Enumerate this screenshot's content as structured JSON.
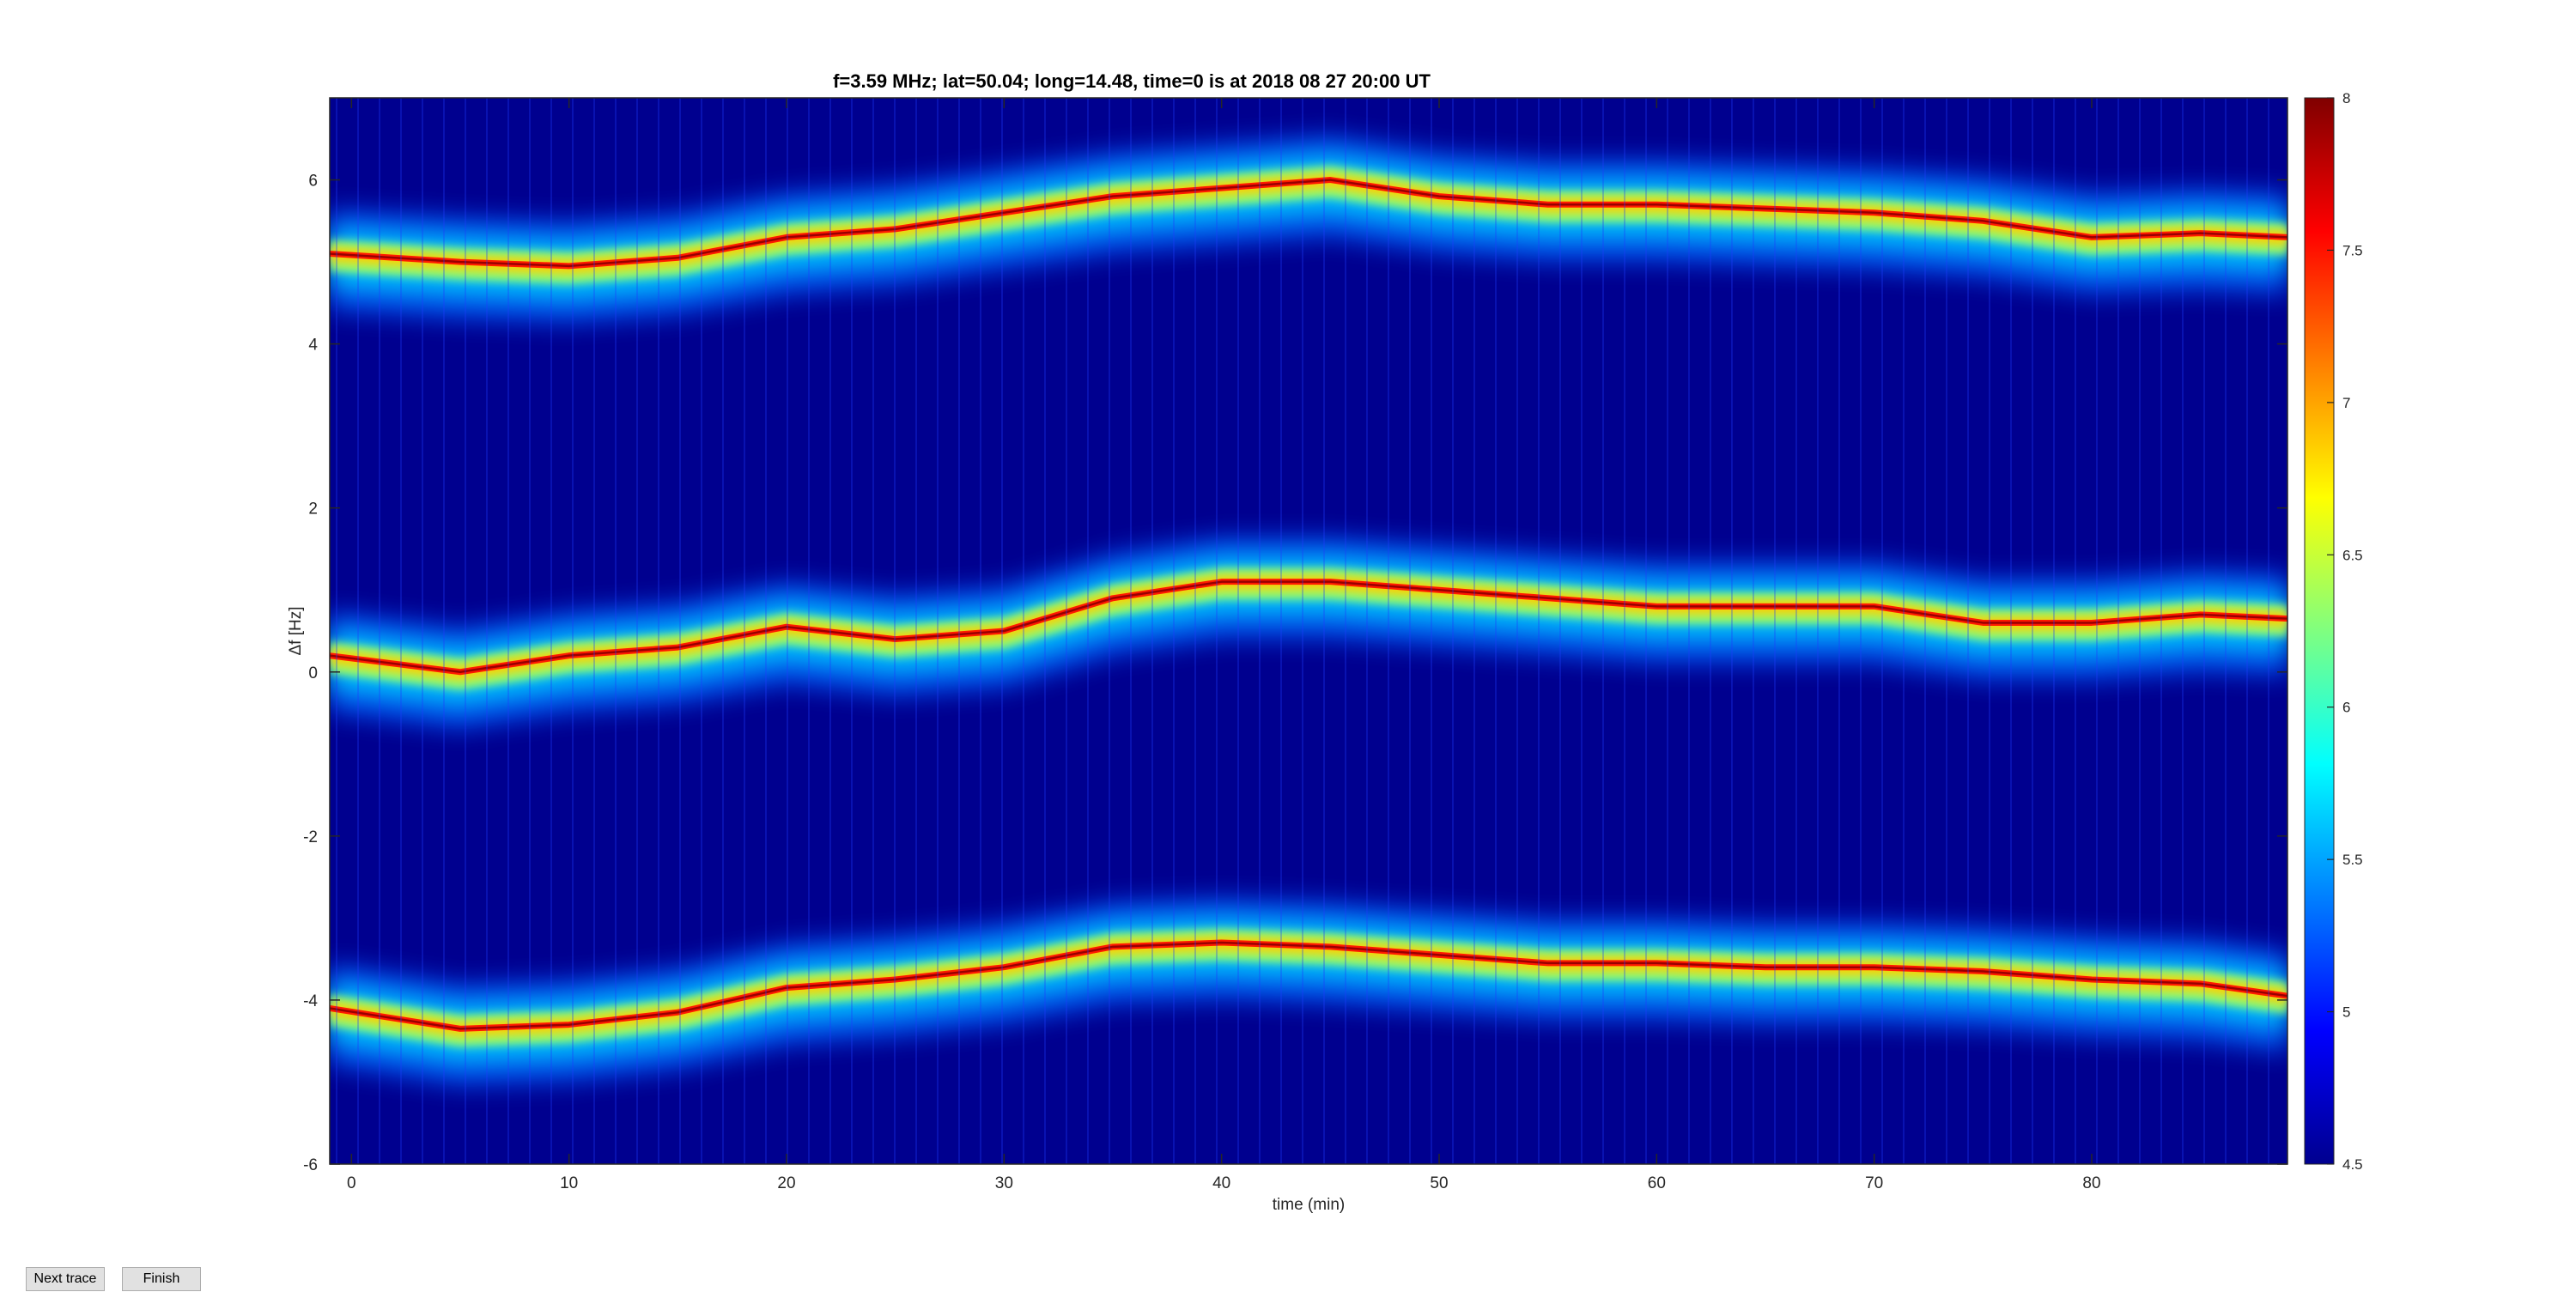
{
  "chart_data": {
    "type": "heatmap",
    "title": "f=3.59 MHz;  lat=50.04; long=14.48, time=0 is at 2018 08 27 20:00 UT",
    "xlabel": "time (min)",
    "ylabel": "Δf [Hz]",
    "xlim": [
      -1,
      89
    ],
    "ylim": [
      -6,
      7
    ],
    "xticks": [
      0,
      10,
      20,
      30,
      40,
      50,
      60,
      70,
      80
    ],
    "yticks": [
      -6,
      -4,
      -2,
      0,
      2,
      4,
      6
    ],
    "colorbar": {
      "ticks": [
        "8",
        "7.5",
        "7",
        "6.5",
        "6",
        "5.5",
        "5",
        "4.5"
      ],
      "range": [
        4.5,
        8
      ],
      "colormap": "jet"
    },
    "background_color": "#00008f",
    "series": [
      {
        "trace": "upper",
        "x": [
          -1,
          5,
          10,
          15,
          20,
          25,
          30,
          35,
          40,
          45,
          50,
          55,
          60,
          65,
          70,
          75,
          80,
          85,
          89
        ],
        "y": [
          5.1,
          5.0,
          4.95,
          5.05,
          5.3,
          5.4,
          5.6,
          5.8,
          5.9,
          6.0,
          5.8,
          5.7,
          5.7,
          5.65,
          5.6,
          5.5,
          5.3,
          5.35,
          5.3
        ]
      },
      {
        "trace": "middle",
        "x": [
          -1,
          5,
          10,
          15,
          20,
          25,
          30,
          35,
          40,
          45,
          50,
          55,
          60,
          65,
          70,
          75,
          80,
          85,
          89
        ],
        "y": [
          0.2,
          0.0,
          0.2,
          0.3,
          0.55,
          0.4,
          0.5,
          0.9,
          1.1,
          1.1,
          1.0,
          0.9,
          0.8,
          0.8,
          0.8,
          0.6,
          0.6,
          0.7,
          0.65
        ]
      },
      {
        "trace": "lower",
        "x": [
          -1,
          5,
          10,
          15,
          20,
          25,
          30,
          35,
          40,
          45,
          50,
          55,
          60,
          65,
          70,
          75,
          80,
          85,
          89
        ],
        "y": [
          -4.1,
          -4.35,
          -4.3,
          -4.15,
          -3.85,
          -3.75,
          -3.6,
          -3.35,
          -3.3,
          -3.35,
          -3.45,
          -3.55,
          -3.55,
          -3.6,
          -3.6,
          -3.65,
          -3.75,
          -3.8,
          -3.95
        ]
      }
    ]
  },
  "buttons": {
    "next_label": "Next trace",
    "finish_label": "Finish"
  }
}
